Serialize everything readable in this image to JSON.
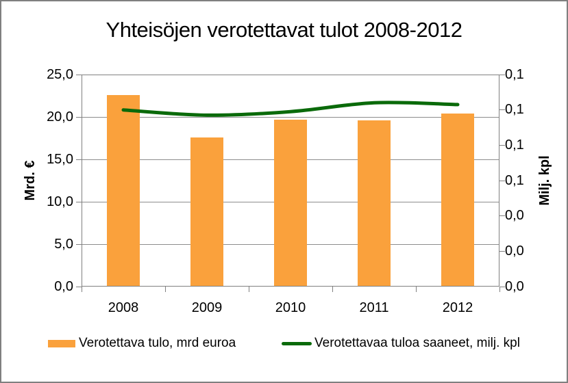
{
  "chart_data": {
    "type": "combo-bar-line",
    "title": "Yhteisöjen verotettavat tulot 2008-2012",
    "categories": [
      "2008",
      "2009",
      "2010",
      "2011",
      "2012"
    ],
    "series": [
      {
        "name": "Verotettava tulo, mrd euroa",
        "type": "bar",
        "axis": "left",
        "color": "#faa13c",
        "values": [
          22.6,
          17.6,
          19.7,
          19.6,
          20.4
        ]
      },
      {
        "name": "Verotettavaa tuloa saaneet, milj. kpl",
        "type": "line",
        "axis": "right",
        "color": "#0a6a0a",
        "smooth": true,
        "values": [
          0.1,
          0.097,
          0.099,
          0.104,
          0.103
        ]
      }
    ],
    "left_axis": {
      "label": "Mrd. €",
      "min": 0,
      "max": 25,
      "major_unit": 5,
      "tick_labels": [
        "25,0",
        "20,0",
        "15,0",
        "10,0",
        "5,0",
        "0,0"
      ]
    },
    "right_axis": {
      "label": "Milj. kpl",
      "min": 0,
      "max": 0.12,
      "major_unit": 0.02,
      "tick_labels": [
        "0,1",
        "0,1",
        "0,1",
        "0,1",
        "0,0",
        "0,0",
        "0,0"
      ]
    },
    "x_axis": {
      "tick_labels": [
        "2008",
        "2009",
        "2010",
        "2011",
        "2012"
      ]
    },
    "legend": {
      "position": "bottom",
      "items": [
        "Verotettava tulo, mrd euroa",
        "Verotettavaa tuloa saaneet, milj. kpl"
      ]
    },
    "layout_hints": {
      "grid": "horizontal major lines, left axis",
      "bar_color": "#faa13c",
      "line_color": "#0a6a0a",
      "axis_color": "#808080",
      "frame_border_color": "#7f7f7f"
    }
  }
}
